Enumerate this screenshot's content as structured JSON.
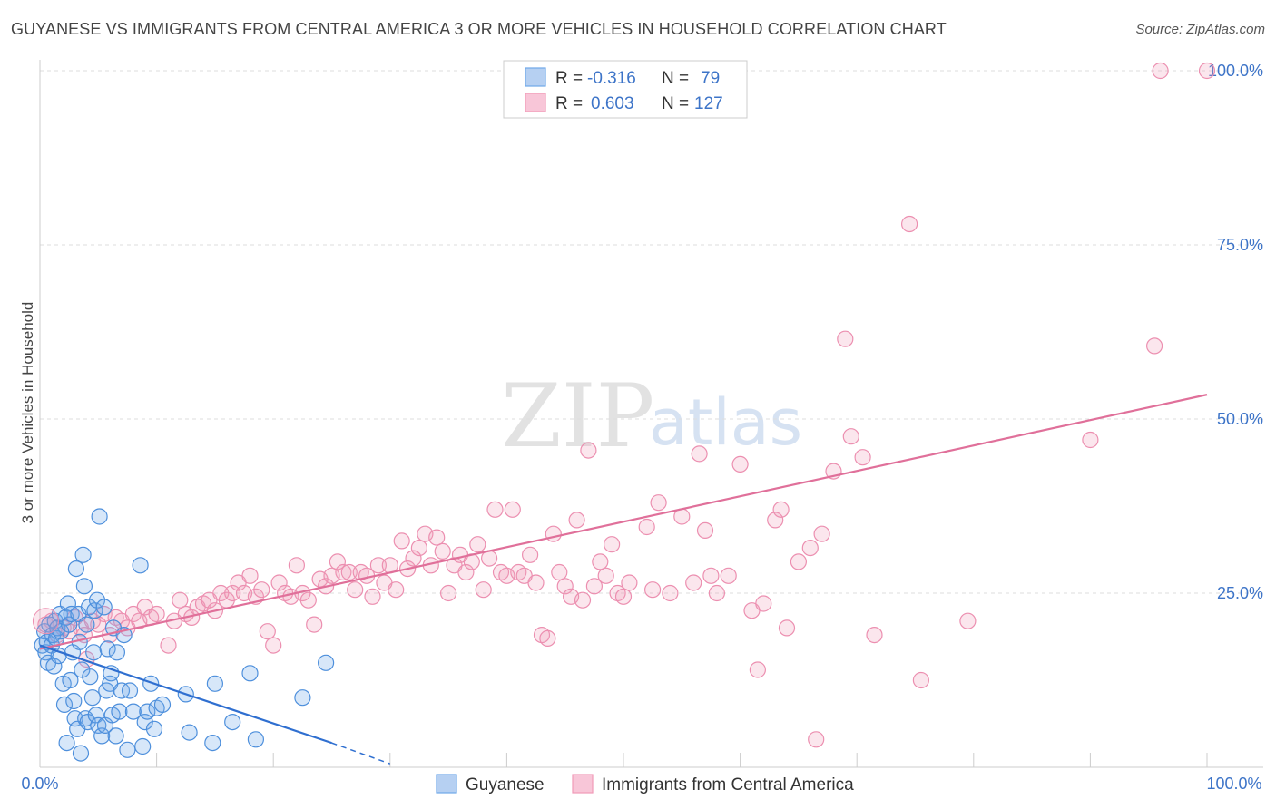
{
  "title": "GUYANESE VS IMMIGRANTS FROM CENTRAL AMERICA 3 OR MORE VEHICLES IN HOUSEHOLD CORRELATION CHART",
  "source": "Source: ZipAtlas.com",
  "watermark": {
    "zip": "ZIP",
    "atlas": "atlas"
  },
  "legend_top": [
    {
      "r_label": "R =",
      "r_value": "-0.316",
      "n_label": "N =",
      "n_value": "79",
      "color": "#6fa8e8"
    },
    {
      "r_label": "R =",
      "r_value": "0.603",
      "n_label": "N =",
      "n_value": "127",
      "color": "#f19ab8"
    }
  ],
  "legend_bottom": [
    "Guyanese",
    "Immigrants from Central America"
  ],
  "chart_data": {
    "type": "scatter",
    "xlabel": "",
    "ylabel": "3 or more Vehicles in Household",
    "xlim": [
      0,
      100
    ],
    "ylim": [
      0,
      100
    ],
    "x_tick_labels": [
      "0.0%",
      "100.0%"
    ],
    "y_tick_labels": [
      "25.0%",
      "50.0%",
      "75.0%",
      "100.0%"
    ],
    "y_ticks": [
      25,
      50,
      75,
      100
    ],
    "grid": true,
    "legend_position": "top-center",
    "series": [
      {
        "name": "Guyanese",
        "color": "#6fa8e8",
        "trend": {
          "x": [
            0,
            25
          ],
          "y": [
            17.5,
            3.5
          ],
          "dashed_to": [
            30,
            0.5
          ]
        },
        "points": [
          [
            0.2,
            17.5
          ],
          [
            0.4,
            19.5
          ],
          [
            0.5,
            16.5
          ],
          [
            0.6,
            18
          ],
          [
            0.7,
            15
          ],
          [
            0.8,
            20.5
          ],
          [
            1.0,
            17.5
          ],
          [
            1.1,
            19
          ],
          [
            1.2,
            14.5
          ],
          [
            1.3,
            21
          ],
          [
            1.4,
            18.5
          ],
          [
            1.5,
            20
          ],
          [
            1.6,
            16
          ],
          [
            1.7,
            22
          ],
          [
            1.8,
            19.5
          ],
          [
            2.0,
            12
          ],
          [
            2.1,
            9
          ],
          [
            2.2,
            21.5
          ],
          [
            2.3,
            3.5
          ],
          [
            2.4,
            23.5
          ],
          [
            2.5,
            20.5
          ],
          [
            2.6,
            12.5
          ],
          [
            2.7,
            22
          ],
          [
            2.8,
            16.5
          ],
          [
            2.9,
            9.5
          ],
          [
            3.0,
            7
          ],
          [
            3.1,
            28.5
          ],
          [
            3.2,
            5.5
          ],
          [
            3.3,
            22
          ],
          [
            3.4,
            18
          ],
          [
            3.5,
            2
          ],
          [
            3.6,
            14
          ],
          [
            3.7,
            30.5
          ],
          [
            3.8,
            26
          ],
          [
            3.9,
            7
          ],
          [
            4.0,
            20.5
          ],
          [
            4.1,
            6.5
          ],
          [
            4.2,
            23
          ],
          [
            4.3,
            13
          ],
          [
            4.5,
            10
          ],
          [
            4.6,
            16.5
          ],
          [
            4.7,
            22.5
          ],
          [
            4.8,
            7.5
          ],
          [
            4.9,
            24
          ],
          [
            5.0,
            6
          ],
          [
            5.1,
            36
          ],
          [
            5.3,
            4.5
          ],
          [
            5.5,
            23
          ],
          [
            5.6,
            6
          ],
          [
            5.7,
            11
          ],
          [
            5.8,
            17
          ],
          [
            6.0,
            12
          ],
          [
            6.1,
            13.5
          ],
          [
            6.2,
            7.5
          ],
          [
            6.3,
            20
          ],
          [
            6.5,
            4.5
          ],
          [
            6.6,
            16.5
          ],
          [
            6.8,
            8
          ],
          [
            7.0,
            11
          ],
          [
            7.2,
            19
          ],
          [
            7.5,
            2.5
          ],
          [
            7.7,
            11
          ],
          [
            8.0,
            8
          ],
          [
            8.6,
            29
          ],
          [
            8.8,
            3
          ],
          [
            9.0,
            6.5
          ],
          [
            9.2,
            8
          ],
          [
            10.0,
            8.5
          ],
          [
            9.5,
            12
          ],
          [
            9.8,
            5.5
          ],
          [
            10.5,
            9
          ],
          [
            12.5,
            10.5
          ],
          [
            12.8,
            5
          ],
          [
            15.0,
            12
          ],
          [
            14.8,
            3.5
          ],
          [
            16.5,
            6.5
          ],
          [
            18.0,
            13.5
          ],
          [
            18.5,
            4
          ],
          [
            22.5,
            10
          ],
          [
            24.5,
            15
          ]
        ]
      },
      {
        "name": "Immigrants from Central America",
        "color": "#f19ab8",
        "trend": {
          "x": [
            0,
            100
          ],
          "y": [
            17,
            53.5
          ]
        },
        "points": [
          [
            0.5,
            20.5
          ],
          [
            1.0,
            21
          ],
          [
            1.5,
            19
          ],
          [
            2.0,
            20
          ],
          [
            2.5,
            19.5
          ],
          [
            3.0,
            21.5
          ],
          [
            3.5,
            20
          ],
          [
            3.8,
            19
          ],
          [
            4.0,
            15.5
          ],
          [
            4.5,
            21
          ],
          [
            5.0,
            20.5
          ],
          [
            5.5,
            22
          ],
          [
            6.0,
            19
          ],
          [
            6.5,
            21.5
          ],
          [
            7.0,
            21
          ],
          [
            7.5,
            20
          ],
          [
            8.0,
            22
          ],
          [
            8.5,
            21
          ],
          [
            9.0,
            23
          ],
          [
            9.5,
            21.5
          ],
          [
            10.0,
            22
          ],
          [
            11.0,
            17.5
          ],
          [
            11.5,
            21
          ],
          [
            12.0,
            24
          ],
          [
            12.5,
            22
          ],
          [
            13.0,
            21.5
          ],
          [
            13.5,
            23
          ],
          [
            14.0,
            23.5
          ],
          [
            14.5,
            24
          ],
          [
            15.0,
            22.5
          ],
          [
            15.5,
            25
          ],
          [
            16.0,
            24
          ],
          [
            16.5,
            25
          ],
          [
            17.0,
            26.5
          ],
          [
            17.5,
            25
          ],
          [
            18.0,
            27.5
          ],
          [
            18.5,
            24.5
          ],
          [
            19.0,
            25.5
          ],
          [
            19.5,
            19.5
          ],
          [
            20.0,
            17.5
          ],
          [
            20.5,
            26.5
          ],
          [
            21.0,
            25
          ],
          [
            21.5,
            24.5
          ],
          [
            22.0,
            29
          ],
          [
            22.5,
            25
          ],
          [
            23.0,
            24
          ],
          [
            23.5,
            20.5
          ],
          [
            24.0,
            27
          ],
          [
            24.5,
            26
          ],
          [
            25.0,
            27.5
          ],
          [
            25.5,
            29.5
          ],
          [
            26.0,
            28
          ],
          [
            26.5,
            28
          ],
          [
            27.0,
            25.5
          ],
          [
            27.5,
            28
          ],
          [
            28.0,
            27.5
          ],
          [
            28.5,
            24.5
          ],
          [
            29.0,
            29
          ],
          [
            29.5,
            26.5
          ],
          [
            30.0,
            29
          ],
          [
            30.5,
            25.5
          ],
          [
            31.0,
            32.5
          ],
          [
            31.5,
            28.5
          ],
          [
            32.0,
            30
          ],
          [
            32.5,
            31.5
          ],
          [
            33.0,
            33.5
          ],
          [
            33.5,
            29
          ],
          [
            34.0,
            33
          ],
          [
            34.5,
            31
          ],
          [
            35.0,
            25
          ],
          [
            35.5,
            29
          ],
          [
            36.0,
            30.5
          ],
          [
            36.5,
            28
          ],
          [
            37.0,
            29.5
          ],
          [
            37.5,
            32
          ],
          [
            38.0,
            25.5
          ],
          [
            38.5,
            30
          ],
          [
            39.0,
            37
          ],
          [
            39.5,
            28
          ],
          [
            40.0,
            27.5
          ],
          [
            40.5,
            37
          ],
          [
            41.0,
            28
          ],
          [
            41.5,
            27.5
          ],
          [
            42.0,
            30.5
          ],
          [
            42.5,
            26.5
          ],
          [
            43.0,
            19
          ],
          [
            43.5,
            18.5
          ],
          [
            44.0,
            33.5
          ],
          [
            44.5,
            28
          ],
          [
            45.0,
            26
          ],
          [
            45.5,
            24.5
          ],
          [
            46.0,
            35.5
          ],
          [
            46.5,
            24
          ],
          [
            47.0,
            45.5
          ],
          [
            47.5,
            26
          ],
          [
            48.0,
            29.5
          ],
          [
            48.5,
            27.5
          ],
          [
            49.0,
            32
          ],
          [
            49.5,
            25
          ],
          [
            50.0,
            24.5
          ],
          [
            50.5,
            26.5
          ],
          [
            52.0,
            34.5
          ],
          [
            52.5,
            25.5
          ],
          [
            53.0,
            38
          ],
          [
            54.0,
            25
          ],
          [
            55.0,
            36
          ],
          [
            56.0,
            26.5
          ],
          [
            56.5,
            45
          ],
          [
            57.0,
            34
          ],
          [
            57.5,
            27.5
          ],
          [
            58.0,
            25
          ],
          [
            59.0,
            27.5
          ],
          [
            60.0,
            43.5
          ],
          [
            61.0,
            22.5
          ],
          [
            61.5,
            14
          ],
          [
            62.0,
            23.5
          ],
          [
            63.0,
            35.5
          ],
          [
            63.5,
            37
          ],
          [
            64.0,
            20
          ],
          [
            65.0,
            29.5
          ],
          [
            66.0,
            31.5
          ],
          [
            66.5,
            4
          ],
          [
            67.0,
            33.5
          ],
          [
            68.0,
            42.5
          ],
          [
            69.0,
            61.5
          ],
          [
            69.5,
            47.5
          ],
          [
            70.5,
            44.5
          ],
          [
            71.5,
            19
          ],
          [
            74.5,
            78
          ],
          [
            75.5,
            12.5
          ],
          [
            79.5,
            21
          ],
          [
            90.0,
            47
          ],
          [
            95.5,
            60.5
          ],
          [
            96.0,
            100
          ],
          [
            100.0,
            100
          ]
        ]
      }
    ]
  }
}
